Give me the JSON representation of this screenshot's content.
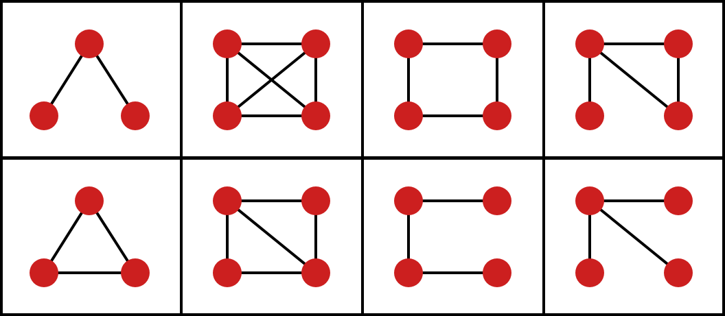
{
  "colors": {
    "node_fill": "#cc1f1f",
    "edge_stroke": "#000000",
    "cell_background": "#ffffff",
    "grid_lines": "#000000"
  },
  "graphs": [
    {
      "id": "triangle-open",
      "nodes": [
        "top",
        "bottom-left",
        "bottom-right"
      ],
      "edges": [
        [
          "top",
          "bottom-left"
        ],
        [
          "top",
          "bottom-right"
        ]
      ]
    },
    {
      "id": "square-complete",
      "nodes": [
        "top-left",
        "top-right",
        "bottom-left",
        "bottom-right"
      ],
      "edges": [
        [
          "top-left",
          "top-right"
        ],
        [
          "bottom-left",
          "bottom-right"
        ],
        [
          "top-left",
          "bottom-left"
        ],
        [
          "top-right",
          "bottom-right"
        ],
        [
          "top-left",
          "bottom-right"
        ],
        [
          "top-right",
          "bottom-left"
        ]
      ]
    },
    {
      "id": "square-cycle",
      "nodes": [
        "top-left",
        "top-right",
        "bottom-left",
        "bottom-right"
      ],
      "edges": [
        [
          "top-left",
          "top-right"
        ],
        [
          "bottom-left",
          "bottom-right"
        ],
        [
          "top-left",
          "bottom-left"
        ],
        [
          "top-right",
          "bottom-right"
        ]
      ]
    },
    {
      "id": "square-paw-no-bottom",
      "nodes": [
        "top-left",
        "top-right",
        "bottom-left",
        "bottom-right"
      ],
      "edges": [
        [
          "top-left",
          "top-right"
        ],
        [
          "top-left",
          "bottom-left"
        ],
        [
          "top-right",
          "bottom-right"
        ],
        [
          "top-left",
          "bottom-right"
        ]
      ]
    },
    {
      "id": "triangle-closed",
      "nodes": [
        "top",
        "bottom-left",
        "bottom-right"
      ],
      "edges": [
        [
          "top",
          "bottom-left"
        ],
        [
          "top",
          "bottom-right"
        ],
        [
          "bottom-left",
          "bottom-right"
        ]
      ]
    },
    {
      "id": "square-diamond",
      "nodes": [
        "top-left",
        "top-right",
        "bottom-left",
        "bottom-right"
      ],
      "edges": [
        [
          "top-left",
          "top-right"
        ],
        [
          "bottom-left",
          "bottom-right"
        ],
        [
          "top-left",
          "bottom-left"
        ],
        [
          "top-right",
          "bottom-right"
        ],
        [
          "top-left",
          "bottom-right"
        ]
      ]
    },
    {
      "id": "square-path-c",
      "nodes": [
        "top-left",
        "top-right",
        "bottom-left",
        "bottom-right"
      ],
      "edges": [
        [
          "top-left",
          "top-right"
        ],
        [
          "top-left",
          "bottom-left"
        ],
        [
          "bottom-left",
          "bottom-right"
        ]
      ]
    },
    {
      "id": "square-star",
      "nodes": [
        "top-left",
        "top-right",
        "bottom-left",
        "bottom-right"
      ],
      "edges": [
        [
          "top-left",
          "top-right"
        ],
        [
          "top-left",
          "bottom-left"
        ],
        [
          "top-left",
          "bottom-right"
        ]
      ]
    }
  ]
}
